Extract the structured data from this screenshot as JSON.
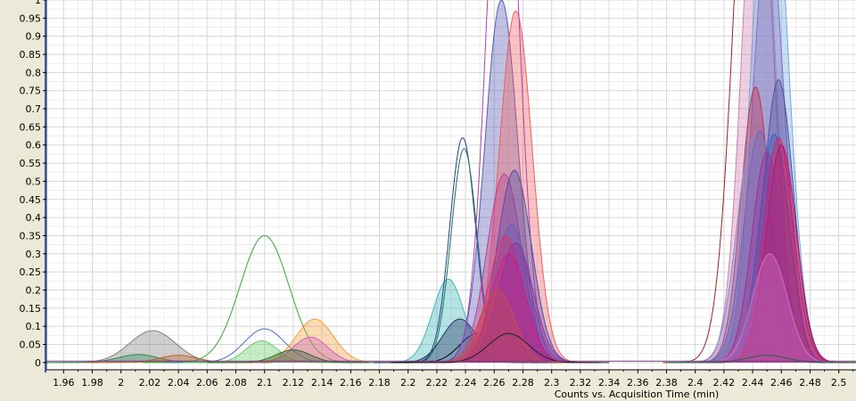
{
  "window": {
    "background": "#ece9d8",
    "plot_background": "#ffffff",
    "grid_color": "#d6d6d6"
  },
  "chart_data": {
    "type": "area",
    "title": "",
    "xlabel": "Counts vs. Acquisition Time (min)",
    "ylabel": "",
    "xlim": [
      1.948,
      2.512
    ],
    "ylim": [
      -0.02,
      1.0
    ],
    "grid": true,
    "legend": "none",
    "x_ticks": [
      "1.96",
      "1.98",
      "2",
      "2.02",
      "2.04",
      "2.06",
      "2.08",
      "2.1",
      "2.12",
      "2.14",
      "2.16",
      "2.18",
      "2.2",
      "2.22",
      "2.24",
      "2.26",
      "2.28",
      "2.3",
      "2.32",
      "2.34",
      "2.36",
      "2.38",
      "2.4",
      "2.42",
      "2.44",
      "2.46",
      "2.48",
      "2.5"
    ],
    "x_tick_values": [
      1.96,
      1.98,
      2.0,
      2.02,
      2.04,
      2.06,
      2.08,
      2.1,
      2.12,
      2.14,
      2.16,
      2.18,
      2.2,
      2.22,
      2.24,
      2.26,
      2.28,
      2.3,
      2.32,
      2.34,
      2.36,
      2.38,
      2.4,
      2.42,
      2.44,
      2.46,
      2.48,
      2.5
    ],
    "y_ticks": [
      "0",
      "0.05",
      "0.1",
      "0.15",
      "0.2",
      "0.25",
      "0.3",
      "0.35",
      "0.4",
      "0.45",
      "0.5",
      "0.55",
      "0.6",
      "0.65",
      "0.7",
      "0.75",
      "0.8",
      "0.85",
      "0.9",
      "0.95",
      "1"
    ],
    "y_tick_values": [
      0,
      0.05,
      0.1,
      0.15,
      0.2,
      0.25,
      0.3,
      0.35,
      0.4,
      0.45,
      0.5,
      0.55,
      0.6,
      0.65,
      0.7,
      0.75,
      0.8,
      0.85,
      0.9,
      0.95,
      1.0
    ],
    "series": [
      {
        "center": 2.022,
        "height": 0.088,
        "sigma": 0.016,
        "color": "#808080",
        "filled": true
      },
      {
        "center": 2.012,
        "height": 0.022,
        "sigma": 0.014,
        "color": "#2e8b57",
        "filled": true
      },
      {
        "center": 2.04,
        "height": 0.02,
        "sigma": 0.013,
        "color": "#c06030",
        "filled": true
      },
      {
        "center": 2.1,
        "height": 0.35,
        "sigma": 0.017,
        "color": "#33aa33",
        "filled": false
      },
      {
        "center": 2.1,
        "height": 0.093,
        "sigma": 0.014,
        "color": "#4a70c0",
        "filled": false
      },
      {
        "center": 2.098,
        "height": 0.06,
        "sigma": 0.011,
        "color": "#66cc66",
        "filled": true
      },
      {
        "center": 2.135,
        "height": 0.12,
        "sigma": 0.013,
        "color": "#f0a040",
        "filled": true
      },
      {
        "center": 2.132,
        "height": 0.07,
        "sigma": 0.012,
        "color": "#d060c0",
        "filled": true
      },
      {
        "center": 2.12,
        "height": 0.035,
        "sigma": 0.012,
        "color": "#2a6a2a",
        "filled": true
      },
      {
        "center": 2.228,
        "height": 0.23,
        "sigma": 0.011,
        "color": "#40b8b8",
        "filled": true
      },
      {
        "center": 2.238,
        "height": 0.62,
        "sigma": 0.009,
        "color": "#1f3f8f",
        "filled": false
      },
      {
        "center": 2.239,
        "height": 0.59,
        "sigma": 0.009,
        "color": "#1a7a5a",
        "filled": false
      },
      {
        "center": 2.236,
        "height": 0.12,
        "sigma": 0.012,
        "color": "#203060",
        "filled": true
      },
      {
        "center": 2.248,
        "height": 0.08,
        "sigma": 0.012,
        "color": "#000000",
        "filled": false
      },
      {
        "center": 2.265,
        "height": 1.0,
        "sigma": 0.0115,
        "color": "#5a5ab4",
        "filled": true
      },
      {
        "center": 2.275,
        "height": 0.97,
        "sigma": 0.0115,
        "color": "#f06060",
        "filled": true
      },
      {
        "center": 2.266,
        "height": 1.6,
        "sigma": 0.011,
        "color": "#b040b0",
        "filled": false
      },
      {
        "center": 2.267,
        "height": 0.52,
        "sigma": 0.012,
        "color": "#c04090",
        "filled": true
      },
      {
        "center": 2.274,
        "height": 0.53,
        "sigma": 0.012,
        "color": "#5050a8",
        "filled": true
      },
      {
        "center": 2.272,
        "height": 0.38,
        "sigma": 0.012,
        "color": "#6060b8",
        "filled": true
      },
      {
        "center": 2.268,
        "height": 0.35,
        "sigma": 0.012,
        "color": "#e03070",
        "filled": true
      },
      {
        "center": 2.27,
        "height": 0.3,
        "sigma": 0.012,
        "color": "#d02080",
        "filled": true
      },
      {
        "center": 2.275,
        "height": 0.33,
        "sigma": 0.012,
        "color": "#9030a0",
        "filled": true
      },
      {
        "center": 2.262,
        "height": 0.2,
        "sigma": 0.012,
        "color": "#c05050",
        "filled": true
      },
      {
        "center": 2.27,
        "height": 0.08,
        "sigma": 0.014,
        "color": "#202020",
        "filled": false
      },
      {
        "center": 2.44,
        "height": 1.7,
        "sigma": 0.0125,
        "color": "#a02020",
        "filled": false
      },
      {
        "center": 2.444,
        "height": 1.5,
        "sigma": 0.011,
        "color": "#d080b0",
        "filled": true
      },
      {
        "center": 2.452,
        "height": 1.5,
        "sigma": 0.012,
        "color": "#70a8e0",
        "filled": true
      },
      {
        "center": 2.451,
        "height": 1.2,
        "sigma": 0.011,
        "color": "#8070c0",
        "filled": true
      },
      {
        "center": 2.442,
        "height": 0.76,
        "sigma": 0.01,
        "color": "#c03050",
        "filled": true
      },
      {
        "center": 2.458,
        "height": 0.78,
        "sigma": 0.0105,
        "color": "#5050a0",
        "filled": true
      },
      {
        "center": 2.44,
        "height": 0.62,
        "sigma": 0.011,
        "color": "#8a8ad0",
        "filled": true
      },
      {
        "center": 2.445,
        "height": 0.64,
        "sigma": 0.011,
        "color": "#6a6ac0",
        "filled": true
      },
      {
        "center": 2.455,
        "height": 0.63,
        "sigma": 0.0105,
        "color": "#3060c0",
        "filled": true
      },
      {
        "center": 2.458,
        "height": 0.62,
        "sigma": 0.0105,
        "color": "#e02060",
        "filled": true
      },
      {
        "center": 2.46,
        "height": 0.6,
        "sigma": 0.0105,
        "color": "#c01060",
        "filled": true
      },
      {
        "center": 2.45,
        "height": 0.58,
        "sigma": 0.0105,
        "color": "#a03090",
        "filled": true
      },
      {
        "center": 2.452,
        "height": 0.3,
        "sigma": 0.012,
        "color": "#d070c0",
        "filled": true
      },
      {
        "center": 2.45,
        "height": 0.02,
        "sigma": 0.014,
        "color": "#1a6a3a",
        "filled": false
      }
    ]
  }
}
